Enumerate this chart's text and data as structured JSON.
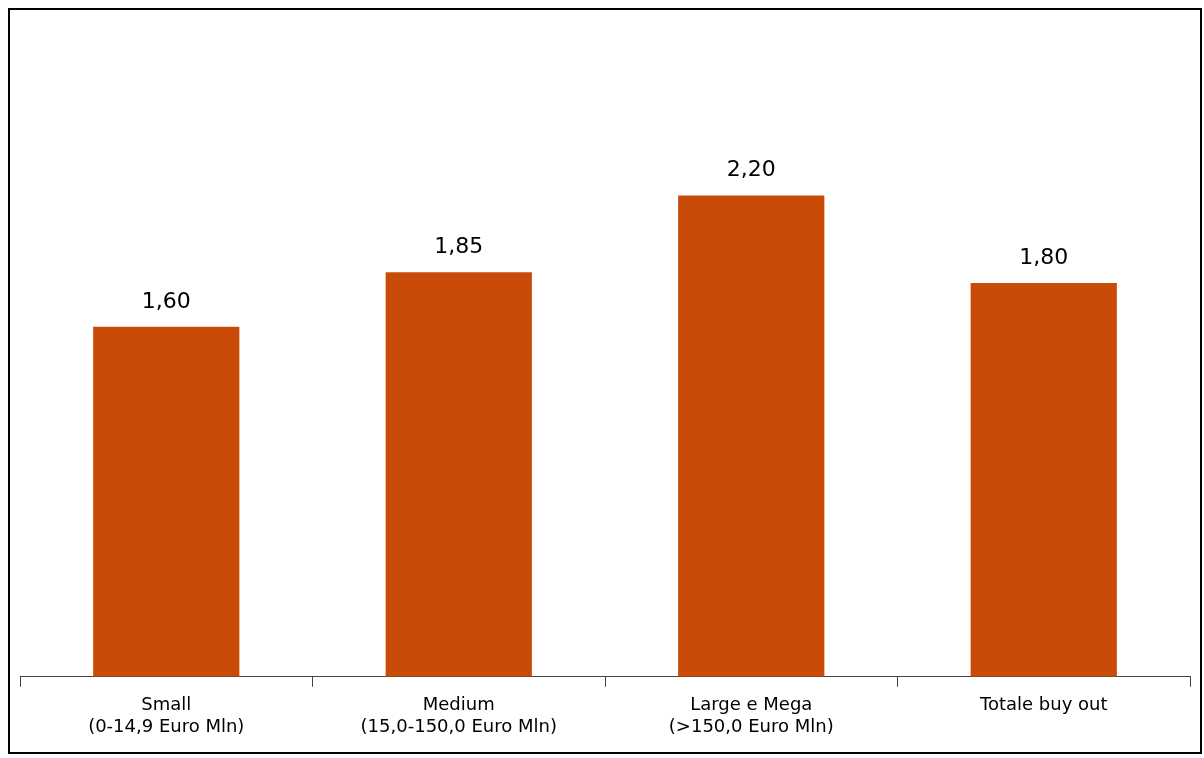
{
  "chart_data": {
    "type": "bar",
    "categories": [
      "Small\n(0-14,9 Euro Mln)",
      "Medium\n(15,0-150,0 Euro Mln)",
      "Large e Mega\n(>150,0 Euro Mln)",
      "Totale buy out"
    ],
    "values": [
      1.6,
      1.85,
      2.2,
      1.8
    ],
    "value_labels": [
      "1,60",
      "1,85",
      "2,20",
      "1,80"
    ],
    "color": "#c84c08",
    "tick_labels": "x",
    "grid": false,
    "legend": false
  }
}
